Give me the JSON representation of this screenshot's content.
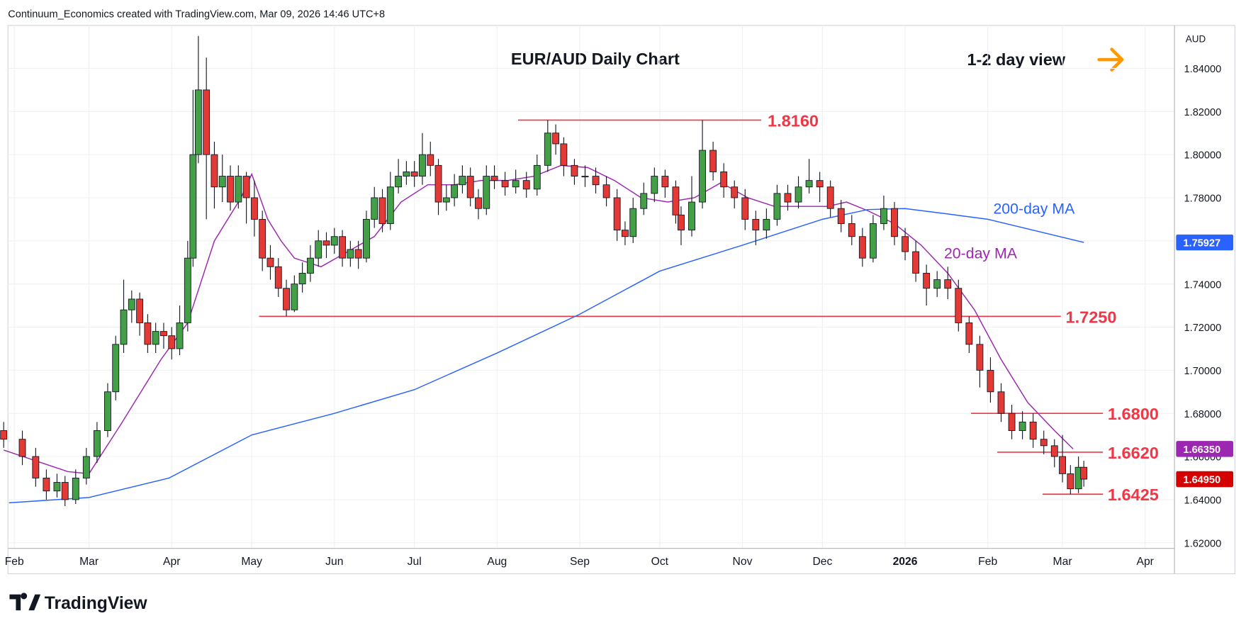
{
  "header": "Continuum_Economics created with TradingView.com, Mar 09, 2026 14:46 UTC+8",
  "logo": "TradingView",
  "chart_data": {
    "type": "candlestick",
    "title": "EUR/AUD Daily Chart",
    "subtitle": "1-2 day view",
    "currency": "AUD",
    "up_color": "#43a047",
    "down_color": "#e53935",
    "x": [
      -4,
      3,
      8,
      12,
      16,
      19,
      23,
      27,
      31,
      35,
      38,
      41,
      44,
      47,
      50,
      53,
      56,
      59,
      62,
      65,
      67,
      69,
      72,
      75,
      78,
      81,
      84,
      87,
      90,
      93,
      96,
      99,
      102,
      105,
      108,
      111,
      114,
      117,
      120,
      123,
      126,
      129,
      132,
      135,
      138,
      141,
      144,
      147,
      150,
      153,
      156,
      159,
      162,
      165,
      168,
      171,
      174,
      177,
      180,
      184,
      188,
      192,
      196,
      200,
      203,
      206,
      210,
      214,
      218,
      222,
      226,
      229,
      232,
      236,
      240,
      244,
      248,
      250,
      254,
      258,
      262,
      266,
      270,
      274,
      278,
      282,
      286,
      290,
      294,
      298,
      302,
      306,
      310,
      314,
      318,
      322,
      326,
      330,
      334,
      338,
      342,
      346,
      350,
      354,
      358,
      362,
      366,
      370,
      374,
      378,
      382,
      386,
      390,
      393,
      396,
      399,
      401
    ],
    "open": [
      1.672,
      1.668,
      1.66,
      1.65,
      1.644,
      1.648,
      1.64,
      1.65,
      1.66,
      1.672,
      1.69,
      1.712,
      1.728,
      1.733,
      1.722,
      1.712,
      1.718,
      1.716,
      1.71,
      1.722,
      1.752,
      1.8,
      1.83,
      1.8,
      1.785,
      1.79,
      1.778,
      1.79,
      1.78,
      1.77,
      1.752,
      1.748,
      1.738,
      1.728,
      1.74,
      1.745,
      1.752,
      1.76,
      1.758,
      1.762,
      1.752,
      1.756,
      1.752,
      1.77,
      1.78,
      1.768,
      1.785,
      1.79,
      1.792,
      1.79,
      1.8,
      1.795,
      1.778,
      1.78,
      1.786,
      1.79,
      1.78,
      1.775,
      1.79,
      1.788,
      1.785,
      1.788,
      1.784,
      1.795,
      1.81,
      1.805,
      1.795,
      1.79,
      1.79,
      1.786,
      1.78,
      1.765,
      1.762,
      1.775,
      1.782,
      1.79,
      1.785,
      1.772,
      1.765,
      1.778,
      1.802,
      1.792,
      1.785,
      1.78,
      1.77,
      1.765,
      1.77,
      1.782,
      1.778,
      1.785,
      1.788,
      1.785,
      1.775,
      1.768,
      1.762,
      1.752,
      1.768,
      1.775,
      1.762,
      1.755,
      1.745,
      1.738,
      1.742,
      1.738,
      1.722,
      1.712,
      1.7,
      1.69,
      1.68,
      1.672,
      1.676,
      1.668,
      1.665,
      1.66,
      1.652,
      1.645,
      1.655
    ],
    "high": [
      1.676,
      1.672,
      1.664,
      1.654,
      1.652,
      1.651,
      1.654,
      1.664,
      1.676,
      1.694,
      1.716,
      1.742,
      1.737,
      1.736,
      1.726,
      1.722,
      1.722,
      1.72,
      1.73,
      1.76,
      1.83,
      1.855,
      1.845,
      1.806,
      1.8,
      1.795,
      1.795,
      1.792,
      1.788,
      1.774,
      1.758,
      1.752,
      1.742,
      1.744,
      1.75,
      1.758,
      1.765,
      1.764,
      1.766,
      1.765,
      1.76,
      1.76,
      1.774,
      1.785,
      1.784,
      1.792,
      1.798,
      1.797,
      1.797,
      1.81,
      1.806,
      1.798,
      1.786,
      1.791,
      1.795,
      1.794,
      1.784,
      1.795,
      1.795,
      1.792,
      1.793,
      1.792,
      1.8,
      1.816,
      1.814,
      1.808,
      1.798,
      1.795,
      1.794,
      1.79,
      1.784,
      1.769,
      1.78,
      1.787,
      1.794,
      1.793,
      1.788,
      1.776,
      1.79,
      1.816,
      1.806,
      1.796,
      1.788,
      1.784,
      1.774,
      1.775,
      1.786,
      1.786,
      1.79,
      1.798,
      1.792,
      1.788,
      1.779,
      1.772,
      1.766,
      1.772,
      1.781,
      1.778,
      1.766,
      1.76,
      1.749,
      1.746,
      1.748,
      1.742,
      1.725,
      1.716,
      1.706,
      1.694,
      1.684,
      1.681,
      1.68,
      1.672,
      1.668,
      1.67,
      1.656,
      1.66,
      1.658
    ],
    "low": [
      1.664,
      1.656,
      1.646,
      1.64,
      1.641,
      1.637,
      1.638,
      1.647,
      1.657,
      1.669,
      1.686,
      1.708,
      1.722,
      1.716,
      1.708,
      1.708,
      1.71,
      1.705,
      1.707,
      1.718,
      1.748,
      1.796,
      1.77,
      1.775,
      1.778,
      1.774,
      1.775,
      1.768,
      1.762,
      1.746,
      1.742,
      1.734,
      1.725,
      1.727,
      1.736,
      1.741,
      1.748,
      1.752,
      1.754,
      1.748,
      1.748,
      1.747,
      1.75,
      1.766,
      1.764,
      1.765,
      1.782,
      1.786,
      1.785,
      1.786,
      1.79,
      1.772,
      1.774,
      1.776,
      1.782,
      1.776,
      1.77,
      1.772,
      1.784,
      1.781,
      1.782,
      1.78,
      1.781,
      1.792,
      1.8,
      1.79,
      1.786,
      1.785,
      1.782,
      1.776,
      1.76,
      1.758,
      1.759,
      1.772,
      1.778,
      1.78,
      1.768,
      1.758,
      1.762,
      1.775,
      1.788,
      1.78,
      1.775,
      1.765,
      1.758,
      1.761,
      1.767,
      1.774,
      1.775,
      1.782,
      1.778,
      1.771,
      1.764,
      1.758,
      1.748,
      1.75,
      1.765,
      1.758,
      1.751,
      1.741,
      1.73,
      1.734,
      1.733,
      1.718,
      1.708,
      1.692,
      1.685,
      1.676,
      1.668,
      1.668,
      1.664,
      1.661,
      1.655,
      1.648,
      1.6425,
      1.643,
      1.646
    ],
    "close": [
      1.668,
      1.66,
      1.65,
      1.644,
      1.648,
      1.64,
      1.65,
      1.66,
      1.672,
      1.69,
      1.712,
      1.728,
      1.733,
      1.722,
      1.712,
      1.718,
      1.716,
      1.71,
      1.722,
      1.752,
      1.8,
      1.83,
      1.8,
      1.785,
      1.79,
      1.778,
      1.79,
      1.78,
      1.77,
      1.752,
      1.748,
      1.738,
      1.728,
      1.74,
      1.745,
      1.752,
      1.76,
      1.758,
      1.762,
      1.752,
      1.756,
      1.752,
      1.77,
      1.78,
      1.768,
      1.785,
      1.79,
      1.792,
      1.79,
      1.8,
      1.795,
      1.778,
      1.78,
      1.786,
      1.79,
      1.78,
      1.775,
      1.79,
      1.788,
      1.785,
      1.788,
      1.784,
      1.795,
      1.81,
      1.805,
      1.795,
      1.79,
      1.79,
      1.786,
      1.78,
      1.765,
      1.762,
      1.775,
      1.782,
      1.79,
      1.785,
      1.772,
      1.765,
      1.778,
      1.802,
      1.792,
      1.785,
      1.78,
      1.77,
      1.765,
      1.77,
      1.782,
      1.778,
      1.785,
      1.788,
      1.785,
      1.775,
      1.768,
      1.762,
      1.752,
      1.768,
      1.775,
      1.762,
      1.755,
      1.745,
      1.738,
      1.742,
      1.738,
      1.722,
      1.712,
      1.7,
      1.69,
      1.68,
      1.672,
      1.676,
      1.668,
      1.665,
      1.66,
      1.652,
      1.645,
      1.655,
      1.6495
    ],
    "series": [
      {
        "name": "20-day MA",
        "color": "#9c27b0",
        "x": [
          -4,
          20,
          28,
          40,
          55,
          65,
          75,
          85,
          89,
          95,
          100,
          105,
          115,
          125,
          135,
          145,
          155,
          165,
          175,
          185,
          195,
          205,
          215,
          225,
          235,
          245,
          255,
          265,
          275,
          285,
          295,
          305,
          312,
          320,
          330,
          340,
          350,
          360,
          370,
          380,
          390,
          397
        ],
        "values": [
          1.663,
          1.653,
          1.652,
          1.675,
          1.705,
          1.722,
          1.76,
          1.78,
          1.791,
          1.77,
          1.76,
          1.752,
          1.748,
          1.755,
          1.762,
          1.778,
          1.786,
          1.786,
          1.788,
          1.788,
          1.79,
          1.795,
          1.794,
          1.788,
          1.78,
          1.778,
          1.78,
          1.787,
          1.78,
          1.776,
          1.776,
          1.776,
          1.778,
          1.774,
          1.768,
          1.758,
          1.745,
          1.728,
          1.705,
          1.685,
          1.672,
          1.6635
        ]
      },
      {
        "name": "200-day MA",
        "color": "#2962ff",
        "x": [
          -2,
          28,
          58,
          89,
          120,
          150,
          181,
          212,
          242,
          273,
          303,
          320,
          334,
          350,
          365,
          401
        ],
        "values": [
          1.6385,
          1.641,
          1.65,
          1.67,
          1.68,
          1.691,
          1.708,
          1.726,
          1.746,
          1.758,
          1.77,
          1.7745,
          1.775,
          1.7725,
          1.77,
          1.75927
        ]
      }
    ],
    "levels": [
      {
        "value": 1.816,
        "label": "1.8160"
      },
      {
        "value": 1.725,
        "label": "1.7250"
      },
      {
        "value": 1.68,
        "label": "1.6800"
      },
      {
        "value": 1.662,
        "label": "1.6620"
      },
      {
        "value": 1.6425,
        "label": "1.6425"
      }
    ],
    "price_labels": [
      {
        "value": 1.75927,
        "label": "1.75927",
        "color": "#2962ff"
      },
      {
        "value": 1.6635,
        "label": "1.66350",
        "color": "#9c27b0"
      },
      {
        "value": 1.6495,
        "label": "1.64950",
        "color": "#d50000"
      }
    ],
    "xlim": [
      -2.4,
      435
    ],
    "xticks": [
      {
        "value": 0,
        "label": "Feb"
      },
      {
        "value": 28,
        "label": "Mar"
      },
      {
        "value": 59,
        "label": "Apr"
      },
      {
        "value": 89,
        "label": "May"
      },
      {
        "value": 120,
        "label": "Jun"
      },
      {
        "value": 150,
        "label": "Jul"
      },
      {
        "value": 181,
        "label": "Aug"
      },
      {
        "value": 212,
        "label": "Sep"
      },
      {
        "value": 242,
        "label": "Oct"
      },
      {
        "value": 273,
        "label": "Nov"
      },
      {
        "value": 303,
        "label": "Dec"
      },
      {
        "value": 334,
        "label": "2026"
      },
      {
        "value": 365,
        "label": "Feb"
      },
      {
        "value": 393,
        "label": "Mar"
      },
      {
        "value": 424,
        "label": "Apr"
      }
    ],
    "ylim": [
      1.6174,
      1.8599
    ],
    "yticks": [
      {
        "value": 1.62,
        "label": "1.62000"
      },
      {
        "value": 1.64,
        "label": "1.64000"
      },
      {
        "value": 1.66,
        "label": "1.66000"
      },
      {
        "value": 1.68,
        "label": "1.68000"
      },
      {
        "value": 1.7,
        "label": "1.70000"
      },
      {
        "value": 1.72,
        "label": "1.72000"
      },
      {
        "value": 1.74,
        "label": "1.74000"
      },
      {
        "value": 1.76,
        "label": "1.76000"
      },
      {
        "value": 1.78,
        "label": "1.78000"
      },
      {
        "value": 1.8,
        "label": "1.80000"
      },
      {
        "value": 1.82,
        "label": "1.82000"
      },
      {
        "value": 1.84,
        "label": "1.84000"
      }
    ],
    "grid": true
  }
}
